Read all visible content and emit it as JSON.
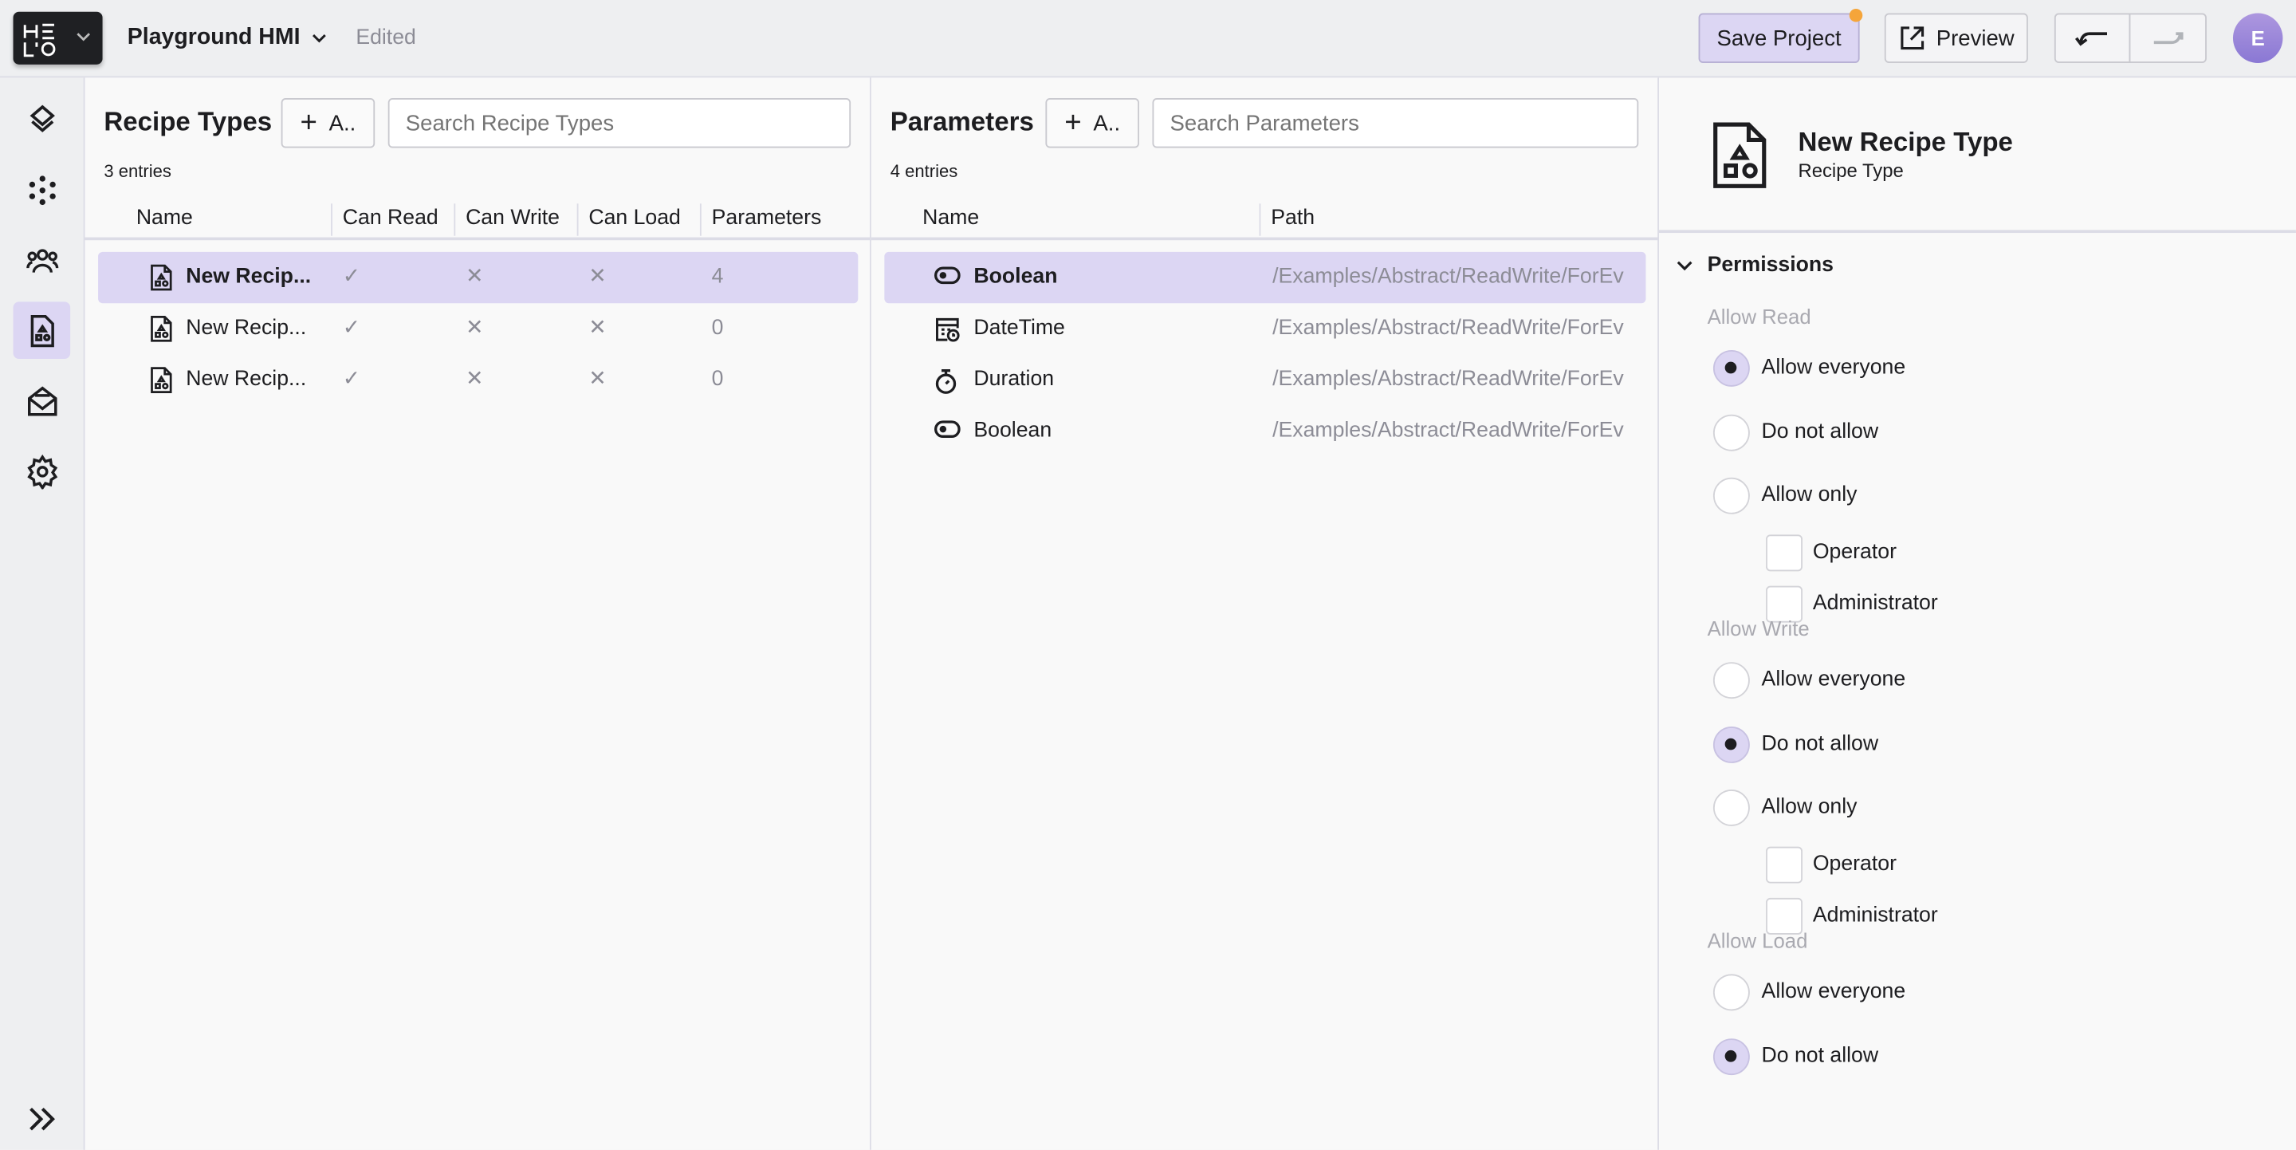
{
  "topbar": {
    "logo": "HELLO",
    "project_name": "Playground HMI",
    "status": "Edited",
    "save_label": "Save Project",
    "preview_label": "Preview",
    "avatar_initial": "E",
    "accent": "#dcd6f3",
    "unsaved_dot_color": "#f5a53a"
  },
  "sidebar": {
    "items": [
      {
        "icon": "layers-icon"
      },
      {
        "icon": "nodes-icon"
      },
      {
        "icon": "users-icon"
      },
      {
        "icon": "recipe-icon",
        "active": true
      },
      {
        "icon": "mail-icon"
      },
      {
        "icon": "gear-icon"
      }
    ],
    "expand_icon": "chevrons-right-icon"
  },
  "recipe_types": {
    "title": "Recipe Types",
    "add_label": "A..",
    "search_placeholder": "Search Recipe Types",
    "entries": "3 entries",
    "columns": [
      "Name",
      "Can Read",
      "Can Write",
      "Can Load",
      "Parameters"
    ],
    "rows": [
      {
        "name": "New Recip...",
        "can_read": "✓",
        "can_write": "✕",
        "can_load": "✕",
        "parameters": "4",
        "selected": true
      },
      {
        "name": "New Recip...",
        "can_read": "✓",
        "can_write": "✕",
        "can_load": "✕",
        "parameters": "0"
      },
      {
        "name": "New Recip...",
        "can_read": "✓",
        "can_write": "✕",
        "can_load": "✕",
        "parameters": "0"
      }
    ]
  },
  "parameters": {
    "title": "Parameters",
    "add_label": "A..",
    "search_placeholder": "Search Parameters",
    "entries": "4 entries",
    "columns": [
      "Name",
      "Path"
    ],
    "rows": [
      {
        "icon": "toggle-icon",
        "name": "Boolean",
        "path": "/Examples/Abstract/ReadWrite/ForEv",
        "selected": true
      },
      {
        "icon": "datetime-icon",
        "name": "DateTime",
        "path": "/Examples/Abstract/ReadWrite/ForEv"
      },
      {
        "icon": "stopwatch-icon",
        "name": "Duration",
        "path": "/Examples/Abstract/ReadWrite/ForEv"
      },
      {
        "icon": "toggle-icon",
        "name": "Boolean",
        "path": "/Examples/Abstract/ReadWrite/ForEv"
      }
    ]
  },
  "detail": {
    "title": "New Recipe Type",
    "subtitle": "Recipe Type",
    "section": "Permissions",
    "groups": [
      {
        "label": "Allow Read",
        "options": [
          "Allow everyone",
          "Do not allow",
          "Allow only"
        ],
        "selected": 0,
        "roles": [
          "Operator",
          "Administrator"
        ]
      },
      {
        "label": "Allow Write",
        "options": [
          "Allow everyone",
          "Do not allow",
          "Allow only"
        ],
        "selected": 1,
        "roles": [
          "Operator",
          "Administrator"
        ]
      },
      {
        "label": "Allow Load",
        "options": [
          "Allow everyone",
          "Do not allow"
        ],
        "selected": 1
      }
    ]
  }
}
